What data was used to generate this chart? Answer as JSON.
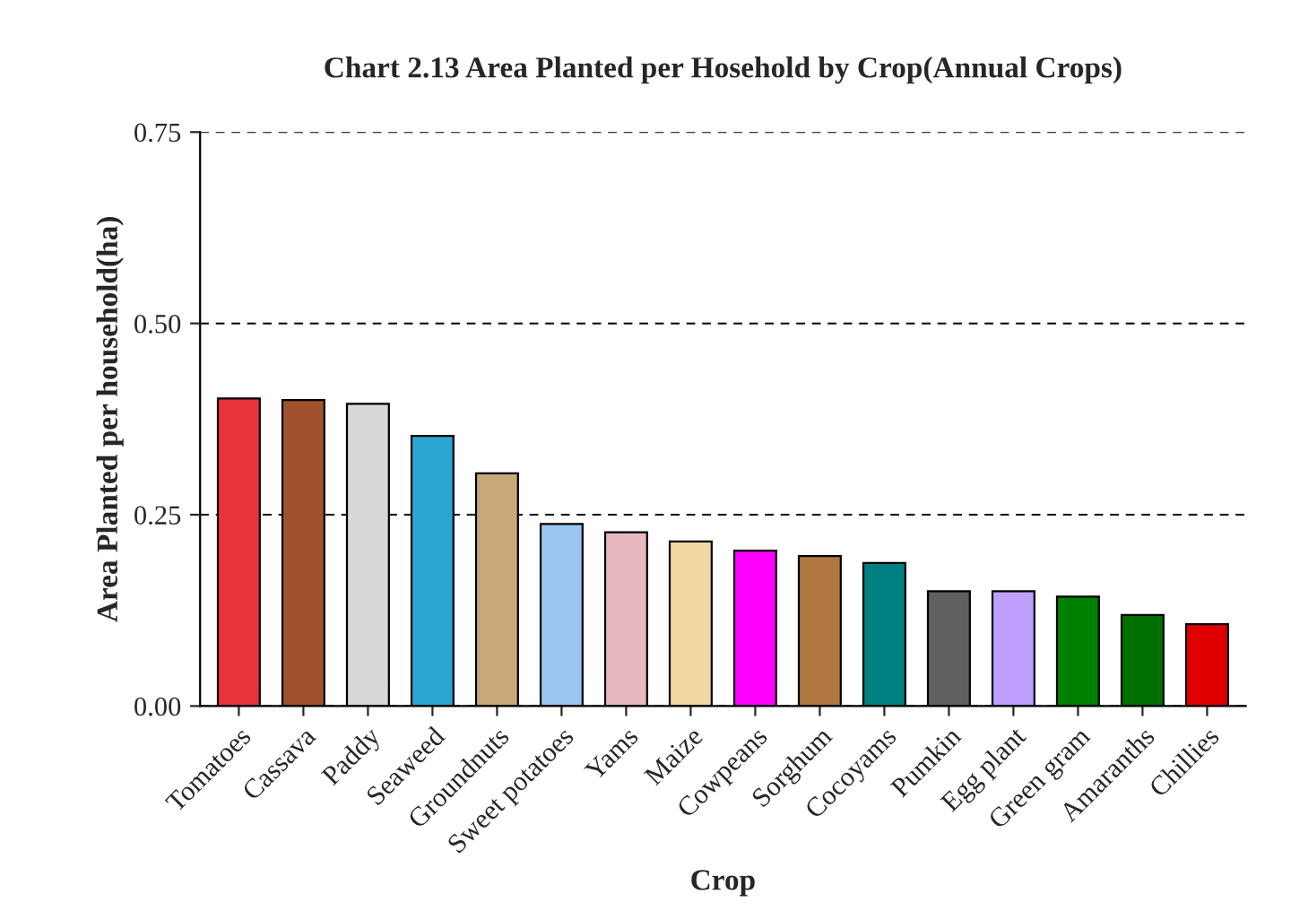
{
  "chart_data": {
    "type": "bar",
    "title": "Chart 2.13 Area Planted per Hosehold by Crop(Annual Crops)",
    "xlabel": "Crop",
    "ylabel": "Area Planted per household(ha)",
    "categories": [
      "Tomatoes",
      "Cassava",
      "Paddy",
      "Seaweed",
      "Groundnuts",
      "Sweet potatoes",
      "Yams",
      "Maize",
      "Cowpeans",
      "Sorghum",
      "Cocoyams",
      "Pumkin",
      "Egg plant",
      "Green gram",
      "Amaranths",
      "Chillies"
    ],
    "values": [
      0.402,
      0.4,
      0.395,
      0.353,
      0.304,
      0.238,
      0.227,
      0.215,
      0.203,
      0.196,
      0.187,
      0.15,
      0.15,
      0.143,
      0.119,
      0.107
    ],
    "colors": [
      "#e8323c",
      "#a0522d",
      "#d8d8d8",
      "#2aa6d0",
      "#c8a878",
      "#9cc4f0",
      "#e8b8c0",
      "#f0d8a0",
      "#ff00ff",
      "#b07840",
      "#008080",
      "#606060",
      "#c0a0ff",
      "#008000",
      "#007000",
      "#e00000"
    ],
    "ylim": [
      0,
      0.75
    ],
    "yticks": [
      {
        "value": 0,
        "label": "0.00"
      },
      {
        "value": 0.25,
        "label": "0.25"
      },
      {
        "value": 0.5,
        "label": "0.50"
      },
      {
        "value": 0.75,
        "label": "0.75"
      }
    ],
    "grid": "y"
  }
}
